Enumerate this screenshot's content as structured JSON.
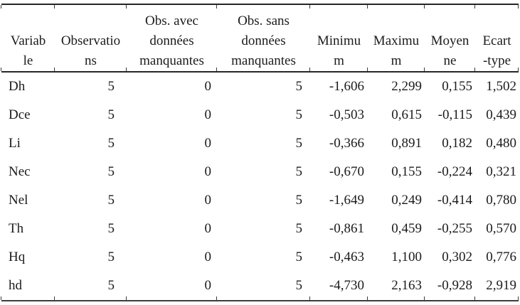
{
  "colors": {
    "background": "#ffffff",
    "text": "#1b1b1b",
    "rule_line": "#262626"
  },
  "table": {
    "columns": [
      {
        "label": "Variab\nle"
      },
      {
        "label": "Observatio\nns"
      },
      {
        "label": "Obs. avec\ndonnées\nmanquantes"
      },
      {
        "label": "Obs. sans\ndonnées\nmanquantes"
      },
      {
        "label": "Minimu\nm"
      },
      {
        "label": "Maximu\nm"
      },
      {
        "label": "Moyen\nne"
      },
      {
        "label": "Ecart\n-type"
      }
    ],
    "rows": [
      {
        "variable": "Dh",
        "observations": "5",
        "avec": "0",
        "sans": "5",
        "min": "-1,606",
        "max": "2,299",
        "moyenne": "0,155",
        "ecart": "1,502"
      },
      {
        "variable": "Dce",
        "observations": "5",
        "avec": "0",
        "sans": "5",
        "min": "-0,503",
        "max": "0,615",
        "moyenne": "-0,115",
        "ecart": "0,439"
      },
      {
        "variable": "Li",
        "observations": "5",
        "avec": "0",
        "sans": "5",
        "min": "-0,366",
        "max": "0,891",
        "moyenne": "0,182",
        "ecart": "0,480"
      },
      {
        "variable": "Nec",
        "observations": "5",
        "avec": "0",
        "sans": "5",
        "min": "-0,670",
        "max": "0,155",
        "moyenne": "-0,224",
        "ecart": "0,321"
      },
      {
        "variable": "Nel",
        "observations": "5",
        "avec": "0",
        "sans": "5",
        "min": "-1,649",
        "max": "0,249",
        "moyenne": "-0,414",
        "ecart": "0,780"
      },
      {
        "variable": "Th",
        "observations": "5",
        "avec": "0",
        "sans": "5",
        "min": "-0,861",
        "max": "0,459",
        "moyenne": "-0,255",
        "ecart": "0,570"
      },
      {
        "variable": "Hq",
        "observations": "5",
        "avec": "0",
        "sans": "5",
        "min": "-0,463",
        "max": "1,100",
        "moyenne": "0,302",
        "ecart": "0,776"
      },
      {
        "variable": "hd",
        "observations": "5",
        "avec": "0",
        "sans": "5",
        "min": "-4,730",
        "max": "2,163",
        "moyenne": "-0,928",
        "ecart": "2,919"
      }
    ]
  }
}
